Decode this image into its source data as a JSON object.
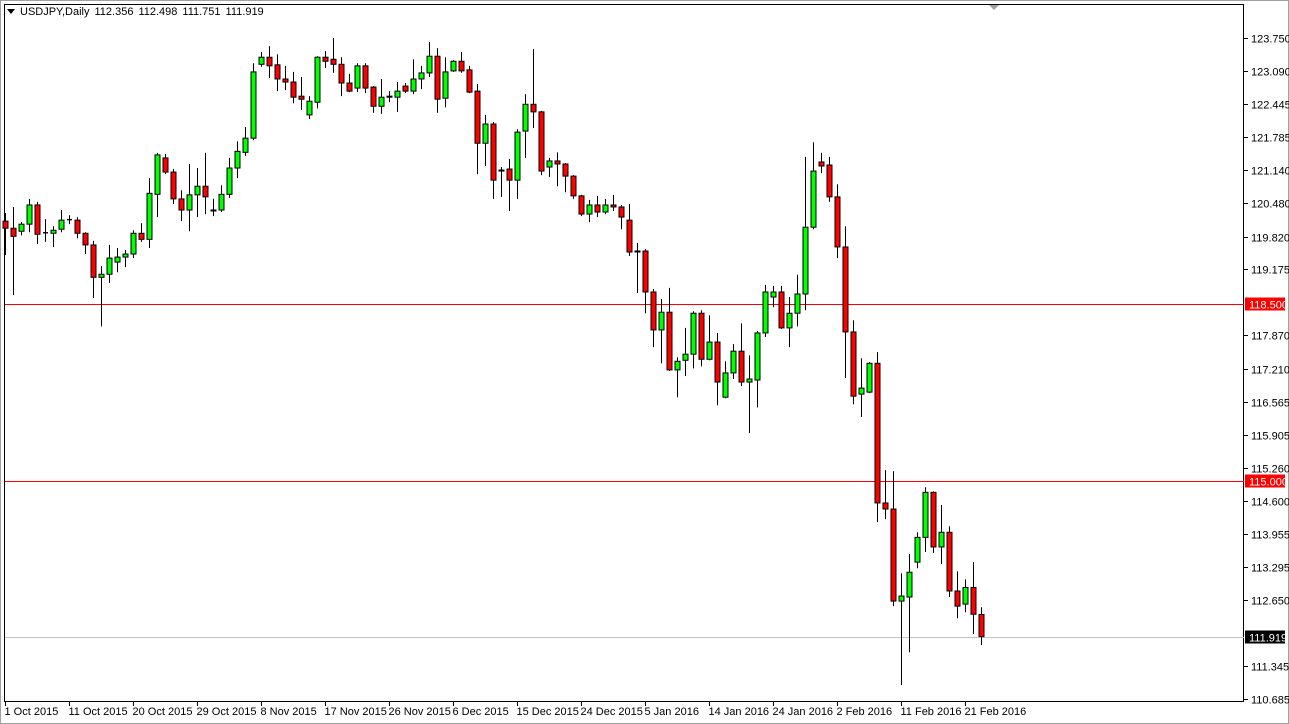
{
  "header": {
    "symbol": "USDJPY,Daily",
    "open": "112.356",
    "high": "112.498",
    "low": "111.751",
    "close": "111.919"
  },
  "colors": {
    "bull": "#00ff00",
    "bear": "#ff0000",
    "outline": "#000000",
    "level_line": "#ff0000",
    "bid_line": "#c0c0c0"
  },
  "chart_data": {
    "type": "candlestick",
    "symbol": "USDJPY",
    "timeframe": "Daily",
    "ylim": [
      110.685,
      123.75
    ],
    "grid": false,
    "y_tick_labels": [
      "123.750",
      "123.090",
      "122.445",
      "121.785",
      "121.140",
      "120.480",
      "119.820",
      "119.175",
      "117.870",
      "117.210",
      "116.565",
      "115.905",
      "115.260",
      "114.600",
      "113.955",
      "113.295",
      "112.650",
      "111.345",
      "110.685"
    ],
    "y_tick_values": [
      123.75,
      123.09,
      122.445,
      121.785,
      121.14,
      120.48,
      119.82,
      119.175,
      117.87,
      117.21,
      116.565,
      115.905,
      115.26,
      114.6,
      113.955,
      113.295,
      112.65,
      111.345,
      110.685
    ],
    "x_tick_labels": [
      {
        "label": "1 Oct 2015",
        "bar": 0
      },
      {
        "label": "11 Oct 2015",
        "bar": 8
      },
      {
        "label": "20 Oct 2015",
        "bar": 16
      },
      {
        "label": "29 Oct 2015",
        "bar": 24
      },
      {
        "label": "8 Nov 2015",
        "bar": 32
      },
      {
        "label": "17 Nov 2015",
        "bar": 40
      },
      {
        "label": "26 Nov 2015",
        "bar": 48
      },
      {
        "label": "6 Dec 2015",
        "bar": 56
      },
      {
        "label": "15 Dec 2015",
        "bar": 64
      },
      {
        "label": "24 Dec 2015",
        "bar": 72
      },
      {
        "label": "5 Jan 2016",
        "bar": 80
      },
      {
        "label": "14 Jan 2016",
        "bar": 88
      },
      {
        "label": "24 Jan 2016",
        "bar": 96
      },
      {
        "label": "2 Feb 2016",
        "bar": 104
      },
      {
        "label": "11 Feb 2016",
        "bar": 112
      },
      {
        "label": "21 Feb 2016",
        "bar": 120
      }
    ],
    "horizontal_lines": [
      {
        "price": 118.5,
        "label": "118.500",
        "kind": "level"
      },
      {
        "price": 115.0,
        "label": "115.000",
        "kind": "level"
      },
      {
        "price": 111.919,
        "label": "111.919",
        "kind": "bid"
      }
    ],
    "ohlc_columns": [
      "open",
      "high",
      "low",
      "close"
    ],
    "ohlc": [
      [
        120.13,
        120.29,
        119.46,
        119.99
      ],
      [
        119.99,
        120.41,
        118.67,
        119.83
      ],
      [
        119.93,
        120.11,
        119.85,
        120.07
      ],
      [
        120.07,
        120.57,
        119.91,
        120.45
      ],
      [
        120.45,
        120.51,
        119.68,
        119.87
      ],
      [
        119.89,
        120.17,
        119.72,
        119.9
      ],
      [
        119.89,
        120.03,
        119.62,
        119.95
      ],
      [
        119.97,
        120.35,
        119.91,
        120.15
      ],
      [
        120.15,
        120.25,
        120.07,
        120.16
      ],
      [
        120.15,
        120.21,
        119.79,
        119.89
      ],
      [
        119.89,
        119.91,
        119.48,
        119.66
      ],
      [
        119.66,
        119.74,
        118.61,
        119.02
      ],
      [
        119.02,
        119.24,
        118.05,
        119.08
      ],
      [
        119.08,
        119.66,
        118.91,
        119.4
      ],
      [
        119.32,
        119.6,
        119.12,
        119.42
      ],
      [
        119.42,
        119.56,
        119.22,
        119.48
      ],
      [
        119.48,
        119.95,
        119.4,
        119.89
      ],
      [
        119.89,
        120.09,
        119.72,
        119.77
      ],
      [
        119.77,
        120.98,
        119.6,
        120.68
      ],
      [
        120.66,
        121.48,
        120.21,
        121.44
      ],
      [
        121.38,
        121.46,
        121.06,
        121.1
      ],
      [
        121.1,
        121.16,
        120.47,
        120.57
      ],
      [
        120.57,
        120.74,
        120.13,
        120.35
      ],
      [
        120.35,
        121.26,
        119.93,
        120.65
      ],
      [
        120.65,
        121.18,
        120.21,
        120.82
      ],
      [
        120.82,
        121.48,
        120.27,
        120.61
      ],
      [
        120.33,
        120.57,
        120.23,
        120.35
      ],
      [
        120.35,
        120.84,
        120.31,
        120.66
      ],
      [
        120.66,
        121.38,
        120.59,
        121.18
      ],
      [
        121.18,
        121.71,
        120.98,
        121.51
      ],
      [
        121.49,
        121.99,
        121.42,
        121.77
      ],
      [
        121.77,
        123.25,
        121.73,
        123.08
      ],
      [
        123.23,
        123.47,
        123.18,
        123.37
      ],
      [
        123.37,
        123.59,
        122.96,
        123.2
      ],
      [
        123.22,
        123.43,
        122.7,
        122.94
      ],
      [
        122.94,
        123.2,
        122.72,
        122.88
      ],
      [
        122.88,
        123.08,
        122.46,
        122.58
      ],
      [
        122.6,
        122.98,
        122.33,
        122.54
      ],
      [
        122.23,
        122.6,
        122.15,
        122.5
      ],
      [
        122.48,
        123.39,
        122.36,
        123.37
      ],
      [
        123.37,
        123.49,
        123.16,
        123.29
      ],
      [
        123.33,
        123.75,
        123.06,
        123.23
      ],
      [
        123.23,
        123.37,
        122.6,
        122.86
      ],
      [
        122.86,
        123.04,
        122.68,
        122.7
      ],
      [
        122.76,
        123.25,
        122.68,
        123.2
      ],
      [
        123.2,
        123.25,
        122.66,
        122.76
      ],
      [
        122.78,
        122.8,
        122.27,
        122.4
      ],
      [
        122.4,
        122.94,
        122.25,
        122.58
      ],
      [
        122.58,
        122.7,
        122.48,
        122.6
      ],
      [
        122.58,
        122.88,
        122.29,
        122.7
      ],
      [
        122.8,
        122.86,
        122.66,
        122.7
      ],
      [
        122.7,
        123.33,
        122.64,
        122.94
      ],
      [
        122.94,
        123.2,
        122.74,
        123.06
      ],
      [
        123.06,
        123.67,
        122.98,
        123.39
      ],
      [
        123.39,
        123.55,
        122.27,
        122.54
      ],
      [
        122.56,
        123.37,
        122.38,
        123.08
      ],
      [
        123.1,
        123.31,
        123.08,
        123.29
      ],
      [
        123.29,
        123.47,
        123.06,
        123.1
      ],
      [
        123.12,
        123.2,
        122.66,
        122.68
      ],
      [
        122.7,
        122.84,
        121.06,
        121.67
      ],
      [
        121.67,
        122.23,
        121.22,
        122.05
      ],
      [
        122.05,
        122.09,
        120.57,
        120.94
      ],
      [
        121.14,
        121.2,
        120.61,
        121.12
      ],
      [
        121.16,
        121.36,
        120.33,
        120.94
      ],
      [
        120.94,
        121.95,
        120.57,
        121.89
      ],
      [
        121.91,
        122.64,
        121.38,
        122.44
      ],
      [
        122.44,
        123.53,
        121.97,
        122.29
      ],
      [
        122.29,
        122.31,
        121.04,
        121.12
      ],
      [
        121.2,
        121.38,
        121.0,
        121.32
      ],
      [
        121.32,
        121.49,
        120.82,
        121.26
      ],
      [
        121.26,
        121.28,
        120.7,
        121.02
      ],
      [
        121.02,
        121.04,
        120.57,
        120.63
      ],
      [
        120.63,
        120.65,
        120.23,
        120.27
      ],
      [
        120.27,
        120.55,
        120.11,
        120.45
      ],
      [
        120.45,
        120.63,
        120.21,
        120.31
      ],
      [
        120.31,
        120.57,
        120.27,
        120.45
      ],
      [
        120.45,
        120.65,
        120.33,
        120.41
      ],
      [
        120.41,
        120.45,
        119.97,
        120.21
      ],
      [
        120.15,
        120.47,
        119.44,
        119.52
      ],
      [
        119.52,
        119.7,
        118.71,
        119.54
      ],
      [
        119.54,
        119.58,
        118.31,
        118.73
      ],
      [
        118.73,
        118.79,
        117.64,
        117.98
      ],
      [
        117.98,
        118.59,
        117.32,
        118.33
      ],
      [
        118.33,
        118.81,
        117.17,
        117.19
      ],
      [
        117.19,
        117.44,
        116.65,
        117.36
      ],
      [
        117.38,
        118.02,
        117.07,
        117.5
      ],
      [
        117.5,
        118.35,
        117.22,
        118.31
      ],
      [
        118.31,
        118.37,
        117.26,
        117.4
      ],
      [
        117.4,
        118.27,
        117.38,
        117.74
      ],
      [
        117.74,
        117.92,
        116.49,
        116.95
      ],
      [
        116.65,
        117.36,
        116.63,
        117.13
      ],
      [
        117.13,
        117.7,
        117.01,
        117.56
      ],
      [
        117.56,
        118.11,
        116.87,
        116.95
      ],
      [
        116.95,
        117.48,
        115.94,
        117.01
      ],
      [
        116.99,
        117.96,
        116.45,
        117.92
      ],
      [
        117.92,
        118.87,
        117.84,
        118.73
      ],
      [
        118.63,
        118.85,
        118.43,
        118.73
      ],
      [
        118.73,
        118.85,
        118.0,
        118.02
      ],
      [
        118.02,
        118.63,
        117.64,
        118.31
      ],
      [
        118.31,
        119.07,
        118.05,
        118.69
      ],
      [
        118.69,
        121.4,
        118.37,
        120.01
      ],
      [
        120.01,
        121.69,
        119.97,
        121.12
      ],
      [
        121.3,
        121.48,
        121.08,
        121.22
      ],
      [
        121.24,
        121.4,
        120.51,
        120.61
      ],
      [
        120.61,
        120.86,
        119.4,
        119.62
      ],
      [
        119.62,
        120.03,
        117.03,
        117.94
      ],
      [
        117.94,
        118.17,
        116.51,
        116.67
      ],
      [
        116.71,
        117.42,
        116.26,
        116.83
      ],
      [
        116.75,
        117.34,
        116.73,
        117.32
      ],
      [
        117.32,
        117.54,
        114.18,
        114.56
      ],
      [
        114.56,
        115.21,
        114.24,
        114.44
      ],
      [
        114.44,
        115.19,
        112.52,
        112.62
      ],
      [
        112.62,
        113.17,
        110.96,
        112.72
      ],
      [
        112.7,
        113.55,
        111.61,
        113.19
      ],
      [
        113.39,
        113.98,
        113.27,
        113.88
      ],
      [
        113.88,
        114.87,
        113.59,
        114.77
      ],
      [
        114.77,
        114.79,
        113.57,
        113.69
      ],
      [
        113.69,
        114.52,
        113.35,
        113.98
      ],
      [
        113.98,
        114.1,
        112.7,
        112.82
      ],
      [
        112.82,
        113.21,
        112.28,
        112.52
      ],
      [
        112.56,
        113.05,
        112.4,
        112.89
      ],
      [
        112.89,
        113.39,
        111.97,
        112.36
      ],
      [
        112.356,
        112.498,
        111.751,
        111.919
      ]
    ]
  }
}
